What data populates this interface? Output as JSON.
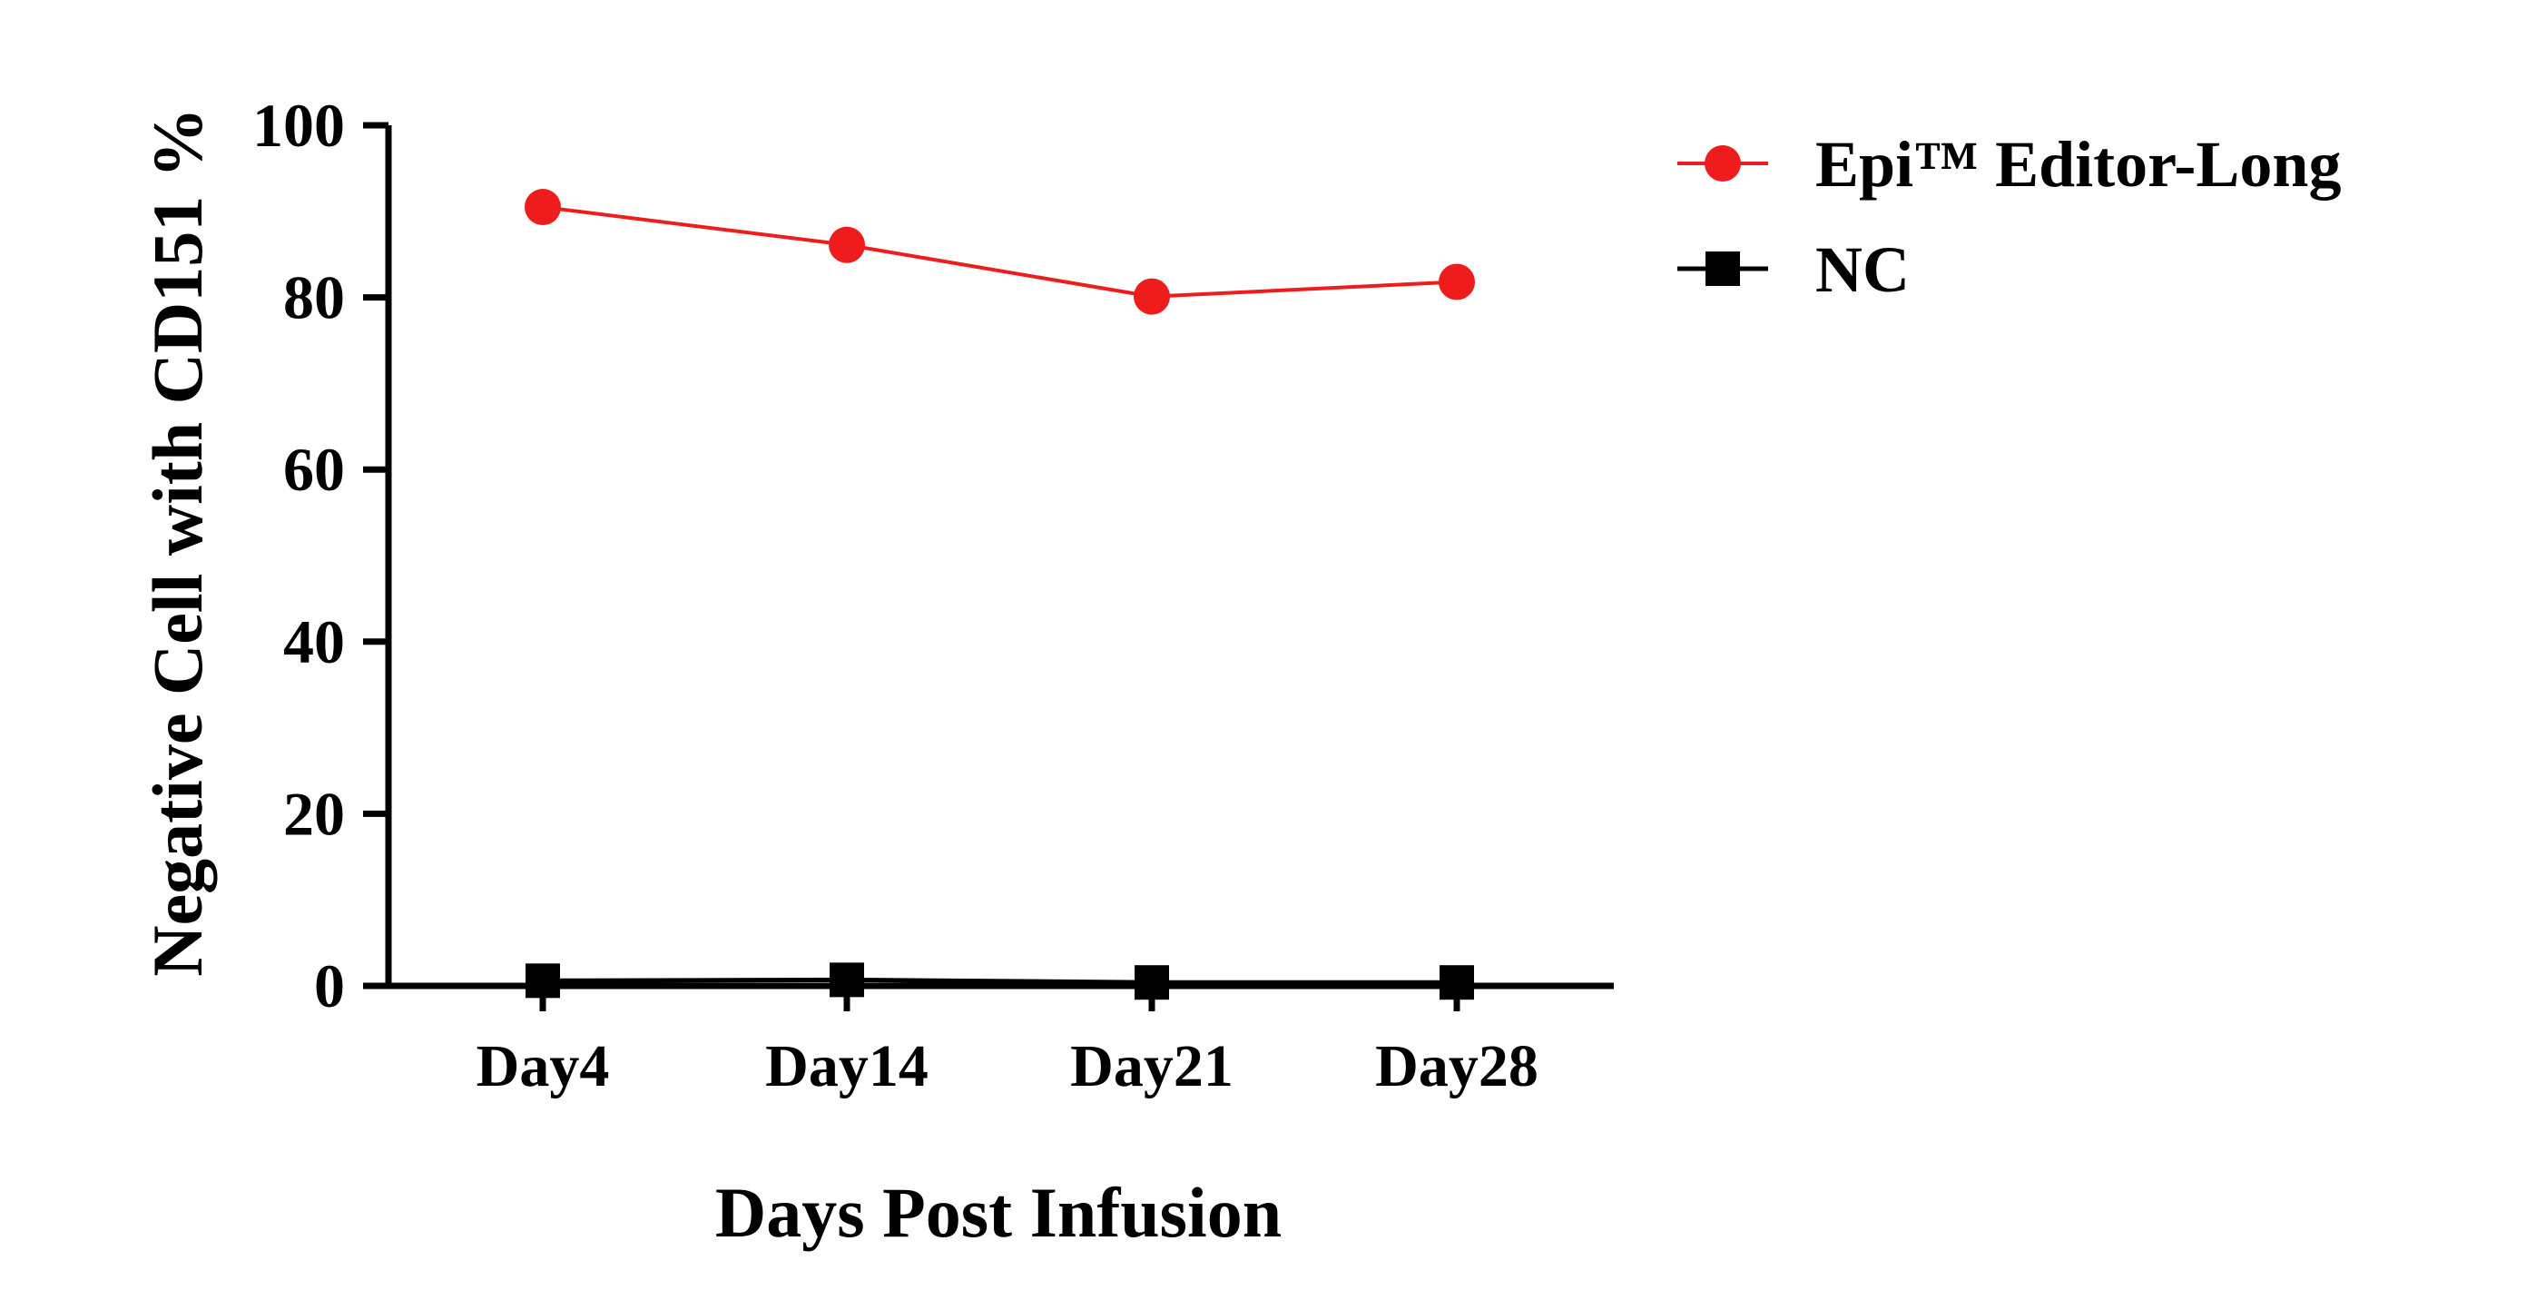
{
  "chart_data": {
    "type": "line",
    "title": "",
    "xlabel": "Days Post Infusion",
    "ylabel": "Negative Cell with CD151 %",
    "categories": [
      "Day4",
      "Day14",
      "Day21",
      "Day28"
    ],
    "ylim": [
      0,
      100
    ],
    "yticks": [
      0,
      20,
      40,
      60,
      80,
      100
    ],
    "grid": false,
    "legend_position": "top-right",
    "series": [
      {
        "name": "Epi™ Editor-Long",
        "marker": "circle",
        "color": "#ee1c1c",
        "values": [
          90.5,
          86.1,
          80.1,
          81.8
        ]
      },
      {
        "name": "NC",
        "marker": "square",
        "color": "#000000",
        "values": [
          0.6,
          0.7,
          0.4,
          0.4
        ]
      }
    ]
  }
}
